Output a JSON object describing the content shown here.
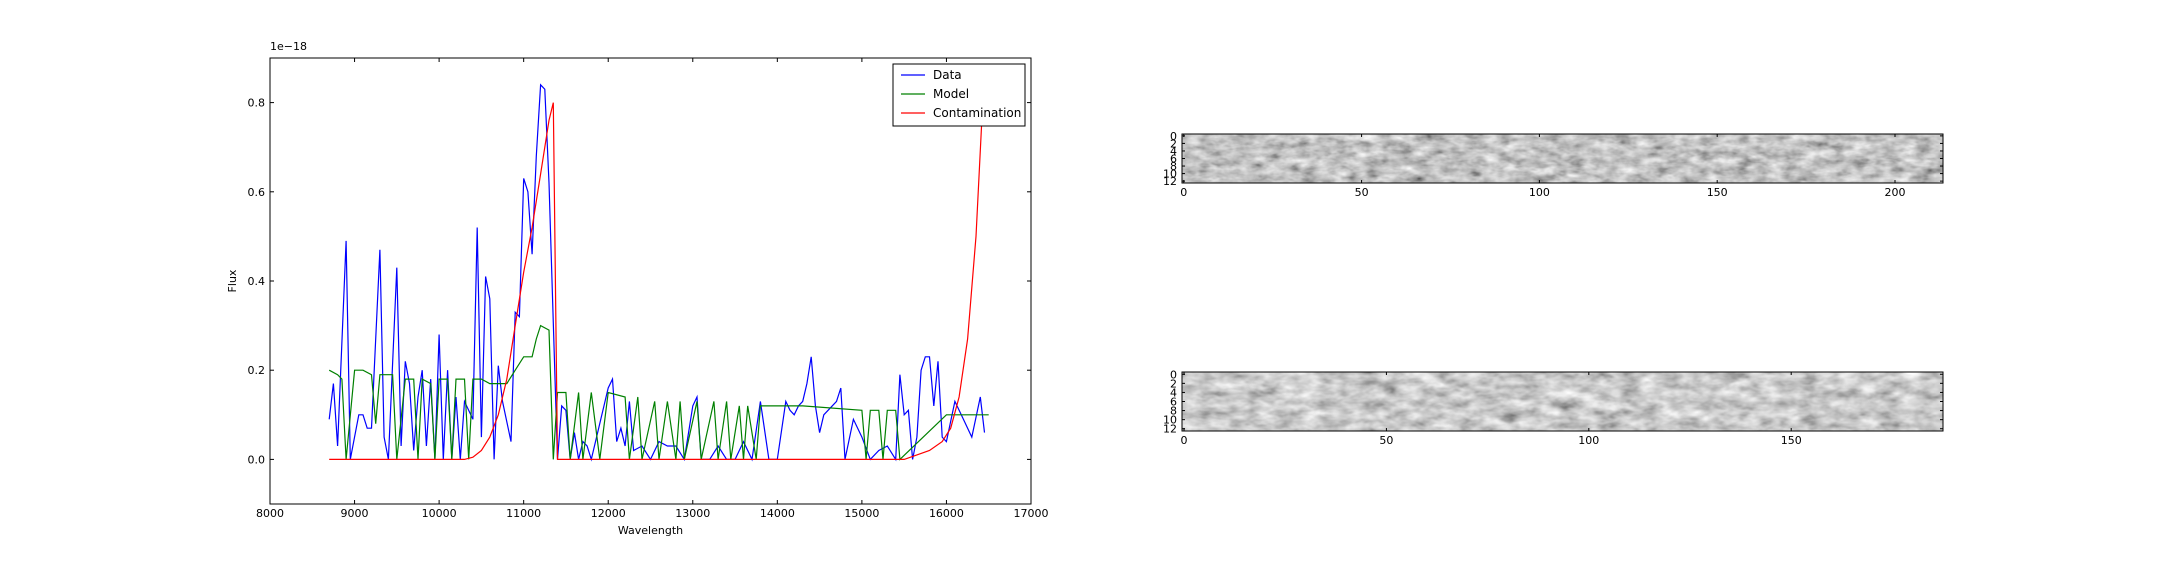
{
  "chart_data": [
    {
      "type": "line",
      "offset_text": "1e−18",
      "x_label": "Wavelength",
      "y_label": "Flux",
      "xlim": [
        8000,
        17000
      ],
      "xticks": [
        8000,
        9000,
        10000,
        11000,
        12000,
        13000,
        14000,
        15000,
        16000,
        17000
      ],
      "ylim": [
        -0.1,
        0.9
      ],
      "yticks": [
        {
          "value": 0,
          "label": "0.0"
        },
        0.2,
        0.4,
        0.6,
        0.8
      ],
      "legend": "upper right",
      "series": [
        {
          "name": "Data",
          "color": "#0000ff",
          "x": [
            8700,
            8750,
            8800,
            8900,
            8950,
            9050,
            9100,
            9150,
            9200,
            9300,
            9350,
            9400,
            9500,
            9550,
            9600,
            9650,
            9700,
            9750,
            9800,
            9850,
            9900,
            9950,
            10000,
            10050,
            10100,
            10150,
            10200,
            10250,
            10300,
            10400,
            10450,
            10500,
            10550,
            10600,
            10650,
            10700,
            10750,
            10850,
            10900,
            10950,
            11000,
            11050,
            11100,
            11150,
            11200,
            11250,
            11300,
            11400,
            11450,
            11500,
            11550,
            11600,
            11650,
            11700,
            11750,
            11800,
            12000,
            12050,
            12100,
            12150,
            12200,
            12250,
            12300,
            12400,
            12500,
            12600,
            12700,
            12800,
            12900,
            13000,
            13050,
            13100,
            13200,
            13300,
            13400,
            13500,
            13600,
            13700,
            13800,
            13900,
            14000,
            14100,
            14150,
            14200,
            14250,
            14300,
            14350,
            14400,
            14450,
            14500,
            14550,
            14700,
            14750,
            14800,
            14900,
            15000,
            15100,
            15200,
            15300,
            15400,
            15450,
            15500,
            15550,
            15600,
            15650,
            15700,
            15750,
            15800,
            15850,
            15900,
            15950,
            16000,
            16100,
            16200,
            16300,
            16400,
            16450
          ],
          "values": [
            0.09,
            0.17,
            0.03,
            0.49,
            0.0,
            0.1,
            0.1,
            0.07,
            0.07,
            0.47,
            0.05,
            0.0,
            0.43,
            0.03,
            0.22,
            0.17,
            0.02,
            0.14,
            0.2,
            0.03,
            0.18,
            0.0,
            0.28,
            0.0,
            0.2,
            0.0,
            0.14,
            0.0,
            0.13,
            0.09,
            0.52,
            0.05,
            0.41,
            0.36,
            0.0,
            0.21,
            0.13,
            0.04,
            0.33,
            0.32,
            0.63,
            0.6,
            0.46,
            0.68,
            0.84,
            0.83,
            0.62,
            0.0,
            0.12,
            0.11,
            0.0,
            0.06,
            0.0,
            0.04,
            0.03,
            0.0,
            0.16,
            0.18,
            0.04,
            0.07,
            0.03,
            0.13,
            0.02,
            0.03,
            0.0,
            0.04,
            0.03,
            0.03,
            0.0,
            0.12,
            0.14,
            0.0,
            0.0,
            0.03,
            0.0,
            0.0,
            0.04,
            0.0,
            0.13,
            0.0,
            0.0,
            0.13,
            0.11,
            0.1,
            0.12,
            0.13,
            0.17,
            0.23,
            0.12,
            0.06,
            0.1,
            0.13,
            0.16,
            0.0,
            0.09,
            0.05,
            0.0,
            0.02,
            0.03,
            0.0,
            0.19,
            0.1,
            0.11,
            0.0,
            0.05,
            0.2,
            0.23,
            0.23,
            0.12,
            0.22,
            0.05,
            0.04,
            0.13,
            0.09,
            0.05,
            0.14,
            0.06
          ]
        },
        {
          "name": "Model",
          "color": "#008000",
          "x": [
            8700,
            8800,
            8850,
            8900,
            9000,
            9100,
            9200,
            9250,
            9300,
            9450,
            9500,
            9600,
            9700,
            9750,
            9800,
            9900,
            9950,
            10000,
            10100,
            10150,
            10200,
            10300,
            10350,
            10400,
            10500,
            10600,
            10800,
            10900,
            11000,
            11100,
            11150,
            11200,
            11300,
            11350,
            11400,
            11500,
            11550,
            11650,
            11700,
            11800,
            11900,
            12000,
            12200,
            12250,
            12350,
            12400,
            12550,
            12600,
            12700,
            12800,
            12850,
            12900,
            13050,
            13100,
            13250,
            13300,
            13400,
            13450,
            13550,
            13600,
            13650,
            13750,
            13800,
            14000,
            14300,
            15000,
            15050,
            15100,
            15200,
            15250,
            15300,
            15400,
            15450,
            16000,
            16500
          ],
          "values": [
            0.2,
            0.19,
            0.18,
            0.0,
            0.2,
            0.2,
            0.19,
            0.08,
            0.19,
            0.19,
            0.0,
            0.18,
            0.18,
            0.0,
            0.18,
            0.17,
            0.0,
            0.18,
            0.18,
            0.0,
            0.18,
            0.18,
            0.0,
            0.18,
            0.18,
            0.17,
            0.17,
            0.2,
            0.23,
            0.23,
            0.27,
            0.3,
            0.29,
            0.0,
            0.15,
            0.15,
            0.0,
            0.15,
            0.0,
            0.15,
            0.0,
            0.15,
            0.14,
            0.0,
            0.14,
            0.0,
            0.13,
            0.0,
            0.13,
            0.0,
            0.13,
            0.0,
            0.13,
            0.0,
            0.13,
            0.0,
            0.13,
            0.0,
            0.12,
            0.0,
            0.12,
            0.0,
            0.12,
            0.12,
            0.12,
            0.11,
            0.0,
            0.11,
            0.11,
            0.0,
            0.11,
            0.11,
            0.0,
            0.1,
            0.1
          ]
        },
        {
          "name": "Contamination",
          "color": "#ff0000",
          "x": [
            8700,
            10300,
            10400,
            10500,
            10600,
            10700,
            10800,
            10900,
            11000,
            11100,
            11200,
            11300,
            11350,
            11400,
            15500,
            15650,
            15800,
            15950,
            16050,
            16150,
            16250,
            16350,
            16450
          ],
          "values": [
            0.0,
            0.0,
            0.005,
            0.02,
            0.05,
            0.1,
            0.18,
            0.3,
            0.42,
            0.52,
            0.64,
            0.76,
            0.8,
            0.0,
            0.0,
            0.01,
            0.02,
            0.04,
            0.07,
            0.14,
            0.27,
            0.5,
            0.88
          ]
        }
      ]
    },
    {
      "type": "image",
      "xlim": [
        -0.5,
        213.5
      ],
      "xticks": [
        0,
        50,
        100,
        150,
        200
      ],
      "ylim": [
        12.5,
        -0.5
      ],
      "yticks": [
        0,
        2,
        4,
        6,
        8,
        10,
        12
      ]
    },
    {
      "type": "image",
      "xlim": [
        -0.5,
        187.5
      ],
      "xticks": [
        0,
        50,
        100,
        150
      ],
      "ylim": [
        12.5,
        -0.5
      ],
      "yticks": [
        0,
        2,
        4,
        6,
        8,
        10,
        12
      ]
    }
  ]
}
